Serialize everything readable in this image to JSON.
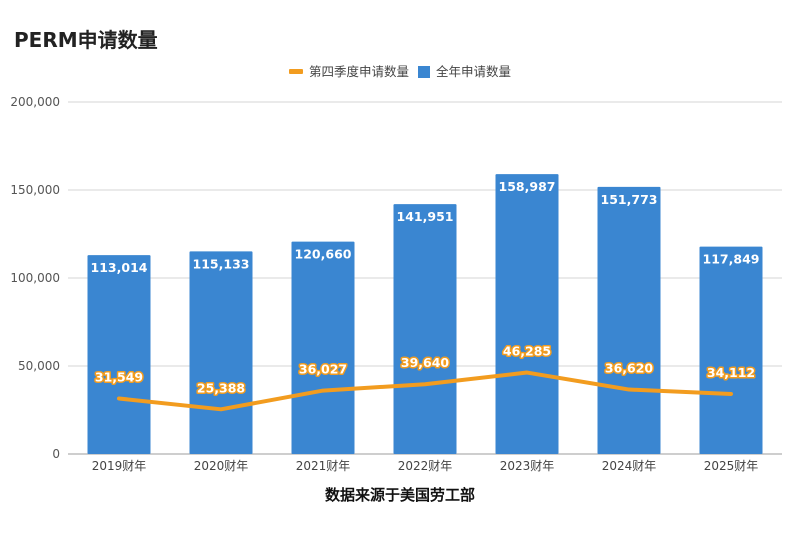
{
  "chart_data": {
    "type": "bar",
    "title": "PERM申请数量",
    "categories": [
      "2019财年",
      "2020财年",
      "2021财年",
      "2022财年",
      "2023财年",
      "2024财年",
      "2025财年"
    ],
    "series": [
      {
        "name": "全年申请数量",
        "kind": "bar",
        "color": "#3a86d1",
        "values": [
          113014,
          115133,
          120660,
          141951,
          158987,
          151773,
          117849
        ],
        "labels": [
          "113,014",
          "115,133",
          "120,660",
          "141,951",
          "158,987",
          "151,773",
          "117,849"
        ]
      },
      {
        "name": "第四季度申请数量",
        "kind": "line",
        "color": "#f29c1f",
        "values": [
          31549,
          25388,
          36027,
          39640,
          46285,
          36620,
          34112
        ],
        "labels": [
          "31,549",
          "25,388",
          "36,027",
          "39,640",
          "46,285",
          "36,620",
          "34,112"
        ]
      }
    ],
    "ylim": [
      0,
      200000
    ],
    "yticks": [
      0,
      50000,
      100000,
      150000,
      200000
    ],
    "ytick_labels": [
      "0",
      "50,000",
      "100,000",
      "150,000",
      "200,000"
    ],
    "legend": {
      "position": "top-center"
    },
    "grid": true,
    "xlabel": "",
    "ylabel": ""
  },
  "footer": {
    "source": "数据来源于美国劳工部"
  }
}
